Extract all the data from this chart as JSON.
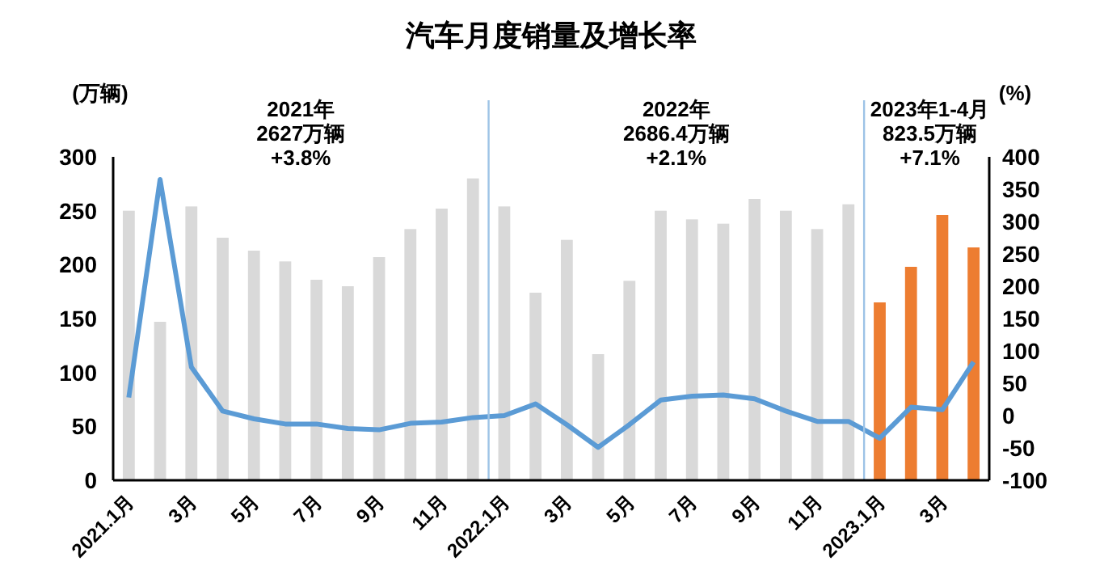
{
  "chart_data": {
    "type": "bar",
    "title": "汽车月度销量及增长率",
    "ylabel": "(万辆)",
    "y2label": "(%)",
    "categories": [
      "2021.1月",
      null,
      "3月",
      null,
      "5月",
      null,
      "7月",
      null,
      "9月",
      null,
      "11月",
      null,
      "2022.1月",
      null,
      "3月",
      null,
      "5月",
      null,
      "7月",
      null,
      "9月",
      null,
      "11月",
      null,
      "2023.1月",
      null,
      "3月",
      null
    ],
    "series": [
      {
        "values": [
          250,
          147,
          254,
          225,
          213,
          203,
          186,
          180,
          207,
          233,
          252,
          280,
          254,
          174,
          223,
          117,
          185,
          250,
          242,
          238,
          261,
          250,
          233,
          256,
          165,
          198,
          246,
          216
        ],
        "colors": [
          "#d9d9d9",
          "#d9d9d9",
          "#d9d9d9",
          "#d9d9d9",
          "#d9d9d9",
          "#d9d9d9",
          "#d9d9d9",
          "#d9d9d9",
          "#d9d9d9",
          "#d9d9d9",
          "#d9d9d9",
          "#d9d9d9",
          "#d9d9d9",
          "#d9d9d9",
          "#d9d9d9",
          "#d9d9d9",
          "#d9d9d9",
          "#d9d9d9",
          "#d9d9d9",
          "#d9d9d9",
          "#d9d9d9",
          "#d9d9d9",
          "#d9d9d9",
          "#d9d9d9",
          "#ed7d31",
          "#ed7d31",
          "#ed7d31",
          "#ed7d31"
        ]
      },
      {
        "type": "line",
        "axis": "y2",
        "color": "#5b9bd5",
        "values": [
          28,
          365,
          75,
          7,
          -5,
          -13,
          -13,
          -20,
          -22,
          -12,
          -10,
          -3,
          0,
          18,
          -14,
          -49,
          -14,
          24,
          30,
          32,
          26,
          7,
          -9,
          -9,
          -35,
          13,
          9,
          83
        ]
      }
    ],
    "ylim": [
      0,
      300
    ],
    "yticks": [
      0,
      50,
      100,
      150,
      200,
      250,
      300
    ],
    "y2lim": [
      -100,
      400
    ],
    "y2ticks": [
      -100,
      -50,
      0,
      50,
      100,
      150,
      200,
      250,
      300,
      350,
      400
    ],
    "annotations": [
      "2021年\n2627万辆\n+3.8%",
      "2022年\n2686.4万辆\n+2.1%",
      "2023年1-4月\n823.5万辆\n+7.1%"
    ],
    "grid": false,
    "marker": "none",
    "line_style": "solid"
  }
}
